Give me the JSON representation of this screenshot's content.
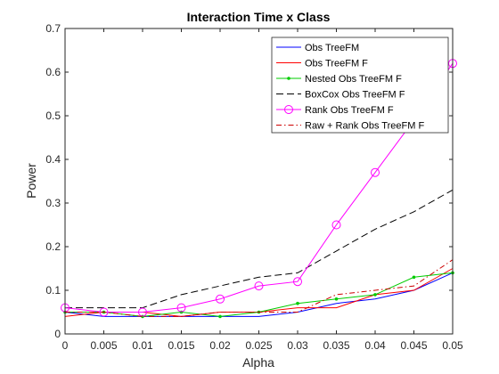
{
  "chart_data": {
    "type": "line",
    "title": "Interaction Time x Class",
    "xlabel": "Alpha",
    "ylabel": "Power",
    "xlim": [
      0,
      0.05
    ],
    "ylim": [
      0,
      0.7
    ],
    "x": [
      0,
      0.005,
      0.01,
      0.015,
      0.02,
      0.025,
      0.03,
      0.035,
      0.04,
      0.045,
      0.05
    ],
    "xticks": [
      "0",
      "0.005",
      "0.01",
      "0.015",
      "0.02",
      "0.025",
      "0.03",
      "0.035",
      "0.04",
      "0.045",
      "0.05"
    ],
    "yticks": [
      "0",
      "0.1",
      "0.2",
      "0.3",
      "0.4",
      "0.5",
      "0.6",
      "0.7"
    ],
    "grid": false,
    "legend_position": "top-right",
    "series": [
      {
        "name": "Obs TreeFM",
        "color": "#0000ff",
        "dash": "solid",
        "marker": "none",
        "values": [
          0.05,
          0.04,
          0.04,
          0.04,
          0.04,
          0.04,
          0.05,
          0.07,
          0.08,
          0.1,
          0.14
        ]
      },
      {
        "name": "Obs TreeFM F",
        "color": "#ff0000",
        "dash": "solid",
        "marker": "none",
        "values": [
          0.04,
          0.05,
          0.05,
          0.04,
          0.05,
          0.05,
          0.06,
          0.06,
          0.09,
          0.1,
          0.15
        ]
      },
      {
        "name": "Nested Obs TreeFM F",
        "color": "#00cc00",
        "dash": "solid",
        "marker": "point",
        "values": [
          0.05,
          0.05,
          0.04,
          0.05,
          0.04,
          0.05,
          0.07,
          0.08,
          0.09,
          0.13,
          0.14
        ]
      },
      {
        "name": "BoxCox Obs TreeFM F",
        "color": "#000000",
        "dash": "dashed",
        "marker": "none",
        "values": [
          0.06,
          0.06,
          0.06,
          0.09,
          0.11,
          0.13,
          0.14,
          0.19,
          0.24,
          0.28,
          0.33
        ]
      },
      {
        "name": "Rank Obs TreeFM F",
        "color": "#ff00ff",
        "dash": "solid",
        "marker": "circle",
        "values": [
          0.06,
          0.05,
          0.05,
          0.06,
          0.08,
          0.11,
          0.12,
          0.25,
          0.37,
          0.49,
          0.62
        ]
      },
      {
        "name": "Raw + Rank Obs TreeFM F",
        "color": "#cc0000",
        "dash": "dashdot",
        "marker": "none",
        "values": [
          0.05,
          0.05,
          0.04,
          0.04,
          0.05,
          0.05,
          0.05,
          0.09,
          0.1,
          0.11,
          0.17
        ]
      }
    ]
  }
}
